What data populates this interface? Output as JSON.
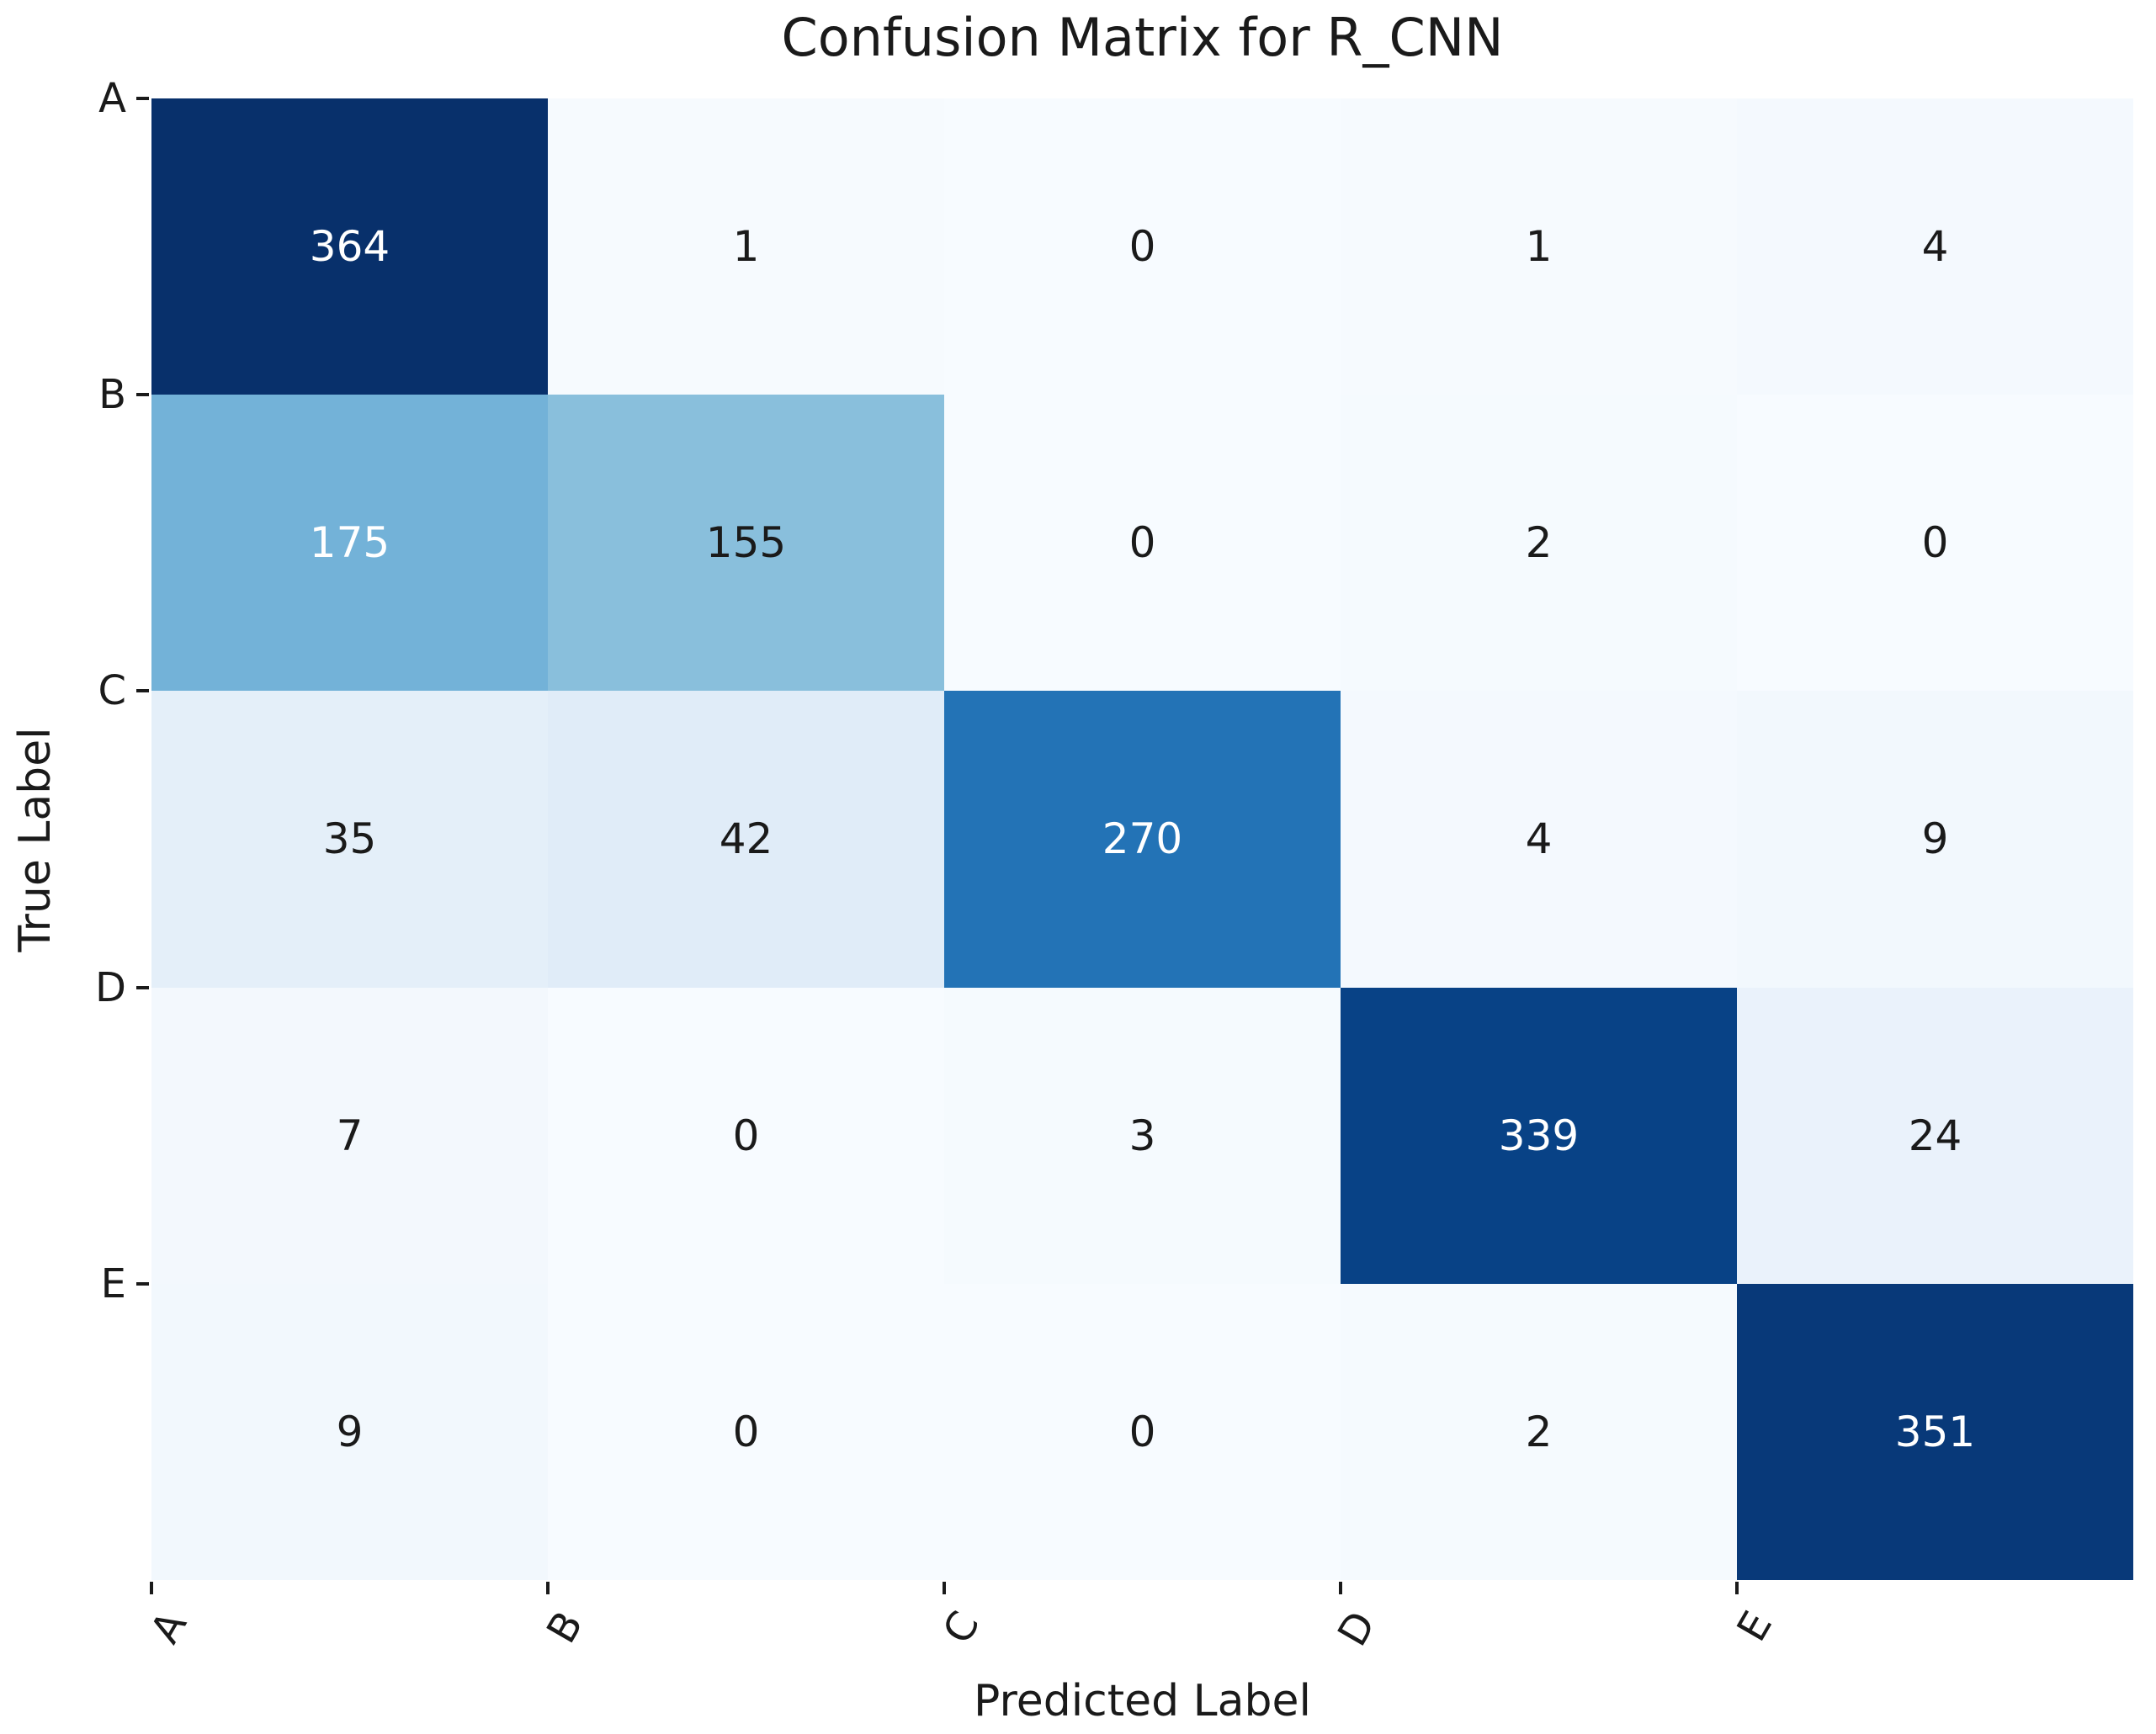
{
  "chart_data": {
    "type": "heatmap",
    "title": "Confusion Matrix for R_CNN",
    "xlabel": "Predicted Label",
    "ylabel": "True Label",
    "x_tick_labels": [
      "A",
      "B",
      "C",
      "D",
      "E"
    ],
    "y_tick_labels": [
      "A",
      "B",
      "C",
      "D",
      "E"
    ],
    "colormap": "Blues",
    "vmin": 0,
    "vmax": 364,
    "grid": false,
    "legend": "none",
    "matrix": [
      [
        364,
        1,
        0,
        1,
        4
      ],
      [
        175,
        155,
        0,
        2,
        0
      ],
      [
        35,
        42,
        270,
        4,
        9
      ],
      [
        7,
        0,
        3,
        339,
        24
      ],
      [
        9,
        0,
        0,
        2,
        351
      ]
    ],
    "cell_colors": [
      [
        "#08306b",
        "#f6fafe",
        "#f7fbff",
        "#f6fafe",
        "#f4f9fe"
      ],
      [
        "#73b2d8",
        "#89bfdc",
        "#f7fbff",
        "#f5fafe",
        "#f7fbff"
      ],
      [
        "#e4eff9",
        "#e0ecf8",
        "#2373b6",
        "#f4f9fe",
        "#f2f8fd"
      ],
      [
        "#f3f8fd",
        "#f7fbff",
        "#f5fafe",
        "#084286",
        "#eaf2fb"
      ],
      [
        "#f2f8fd",
        "#f7fbff",
        "#f7fbff",
        "#f5fafe",
        "#083979"
      ]
    ],
    "cell_text_colors": [
      [
        "#ffffff",
        "#1a1a1a",
        "#1a1a1a",
        "#1a1a1a",
        "#1a1a1a"
      ],
      [
        "#ffffff",
        "#1a1a1a",
        "#1a1a1a",
        "#1a1a1a",
        "#1a1a1a"
      ],
      [
        "#1a1a1a",
        "#1a1a1a",
        "#ffffff",
        "#1a1a1a",
        "#1a1a1a"
      ],
      [
        "#1a1a1a",
        "#1a1a1a",
        "#1a1a1a",
        "#ffffff",
        "#1a1a1a"
      ],
      [
        "#1a1a1a",
        "#1a1a1a",
        "#1a1a1a",
        "#1a1a1a",
        "#ffffff"
      ]
    ],
    "tick_color": "#1a1a1a"
  }
}
